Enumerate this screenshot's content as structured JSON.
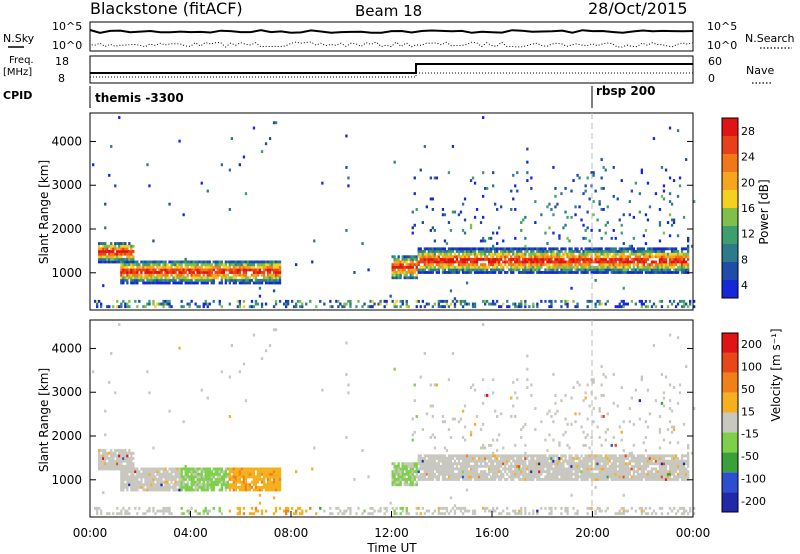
{
  "header": {
    "station": "Blackstone (fitACF)",
    "beam": "Beam 18",
    "date": "28/Oct/2015"
  },
  "strips": {
    "nsky_label": "N.Sky",
    "nsky_ticks": [
      "10^5",
      "10^0"
    ],
    "nsearch_label": "N.Search",
    "nsearch_ticks": [
      "10^5",
      "10^0"
    ],
    "freq_label_top": "Freq.",
    "freq_label_bottom": "[MHz]",
    "freq_ticks": [
      "18",
      "8"
    ],
    "nave_label": "Nave",
    "nave_ticks": [
      "60",
      "0"
    ],
    "cpid_label": "CPID",
    "cpid_segments": [
      "themis -3300",
      "rbsp 200"
    ]
  },
  "chart_data": [
    {
      "type": "heatmap",
      "name": "power",
      "ylabel": "Slant Range [km]",
      "yticks": [
        1000,
        2000,
        3000,
        4000
      ],
      "ylim": [
        150,
        4650
      ],
      "colorbar_label": "Power [dB]",
      "colorbar_ticks": [
        "4",
        "8",
        "12",
        "16",
        "20",
        "24",
        "28"
      ],
      "colors": [
        "#1428d8",
        "#1e4ca8",
        "#2e7a8c",
        "#3d9e6e",
        "#7fbf4a",
        "#f2d21e",
        "#f5a61e",
        "#f07818",
        "#e8401a",
        "#e01414"
      ],
      "echo_bands": [
        {
          "start": 0.3,
          "end": 1.7,
          "center": 1450,
          "width": 500
        },
        {
          "start": 1.2,
          "end": 7.6,
          "center": 1000,
          "width": 550
        },
        {
          "start": 12.0,
          "end": 13.0,
          "center": 1100,
          "width": 600
        },
        {
          "start": 13.0,
          "end": 23.8,
          "center": 1250,
          "width": 600
        }
      ],
      "bin_note": ""
    },
    {
      "type": "heatmap",
      "name": "velocity",
      "ylabel": "Slant Range [km]",
      "yticks": [
        1000,
        2000,
        3000,
        4000
      ],
      "ylim": [
        150,
        4650
      ],
      "colorbar_label": "Velocity [m s⁻¹]",
      "colorbar_ticks": [
        "200",
        "100",
        "50",
        "15",
        "-15",
        "-50",
        "-100",
        "-200"
      ],
      "colors": [
        "#1e2aa8",
        "#2c4fd0",
        "#3aa03a",
        "#7ed04a",
        "#c8c8c0",
        "#f5b020",
        "#f08018",
        "#e84818",
        "#e01414"
      ],
      "xlabel": "Time UT",
      "xticks": [
        "00:00",
        "04:00",
        "08:00",
        "12:00",
        "16:00",
        "20:00",
        "00:00"
      ],
      "xlim": [
        0,
        24
      ]
    }
  ]
}
